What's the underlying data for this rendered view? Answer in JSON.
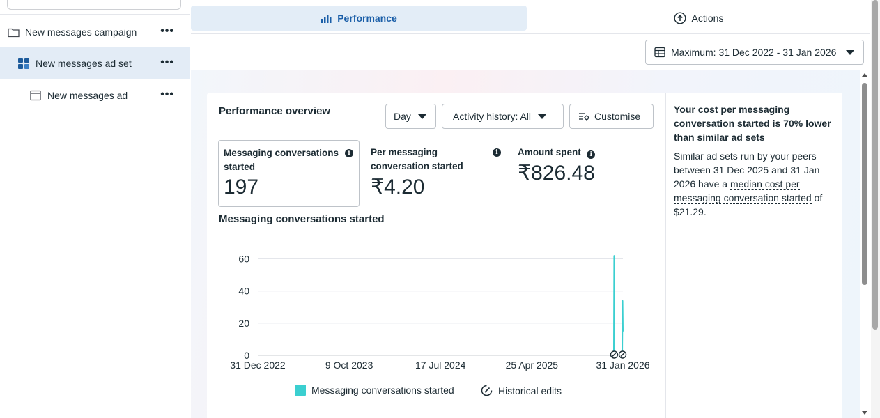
{
  "sidebar": {
    "items": [
      {
        "label": "New messages campaign",
        "icon": "folder-icon"
      },
      {
        "label": "New messages ad set",
        "icon": "ad-set-grid-icon"
      },
      {
        "label": "New messages ad",
        "icon": "ad-window-icon"
      }
    ],
    "more_label": "•••"
  },
  "tabs": {
    "performance": "Performance",
    "actions": "Actions"
  },
  "date_range": "Maximum: 31 Dec 2022 - 31 Jan 2026",
  "overview": {
    "title": "Performance overview",
    "granularity": "Day",
    "activity_history": "Activity history: All",
    "customise": "Customise"
  },
  "metrics": [
    {
      "label": "Messaging conversations started",
      "value": "197"
    },
    {
      "label": "Per messaging conversation started",
      "value": "₹4.20"
    },
    {
      "label": "Amount spent",
      "value": "₹826.48"
    }
  ],
  "chart_section_title": "Messaging conversations started",
  "chart_data": {
    "type": "line",
    "title": "Messaging conversations started",
    "x_ticks": [
      "31 Dec 2022",
      "9 Oct 2023",
      "17 Jul 2024",
      "25 Apr 2025",
      "31 Jan 2026"
    ],
    "y_ticks": [
      0,
      20,
      40,
      60
    ],
    "ylim": [
      0,
      65
    ],
    "xlim": [
      "2022-12-31",
      "2026-01-31"
    ],
    "grid": true,
    "series": [
      {
        "name": "Messaging conversations started",
        "color": "#3bcfd0",
        "points": [
          {
            "x": "2026-01-03",
            "y": 0
          },
          {
            "x": "2026-01-04",
            "y": 62
          },
          {
            "x": "2026-01-05",
            "y": 13
          },
          {
            "x": "2026-01-29",
            "y": 3
          },
          {
            "x": "2026-01-30",
            "y": 34
          },
          {
            "x": "2026-01-31",
            "y": 15
          }
        ]
      }
    ],
    "markers": [
      {
        "x": "2026-01-04",
        "label": "historical-edit"
      },
      {
        "x": "2026-01-30",
        "label": "historical-edit"
      }
    ]
  },
  "legend": {
    "series": "Messaging conversations started",
    "edits": "Historical edits"
  },
  "insight": {
    "title": "Your cost per messaging conversation started is 70% lower than similar ad sets",
    "body_prefix": "Similar ad sets run by your peers between 31 Dec 2025 and 31 Jan 2026 have a ",
    "body_link": "median cost per messaging conversation started",
    "body_suffix": " of $21.29."
  },
  "colors": {
    "accent": "#1a5ea8",
    "series": "#3bcfd0",
    "selected_bg": "#e3ecf6"
  }
}
